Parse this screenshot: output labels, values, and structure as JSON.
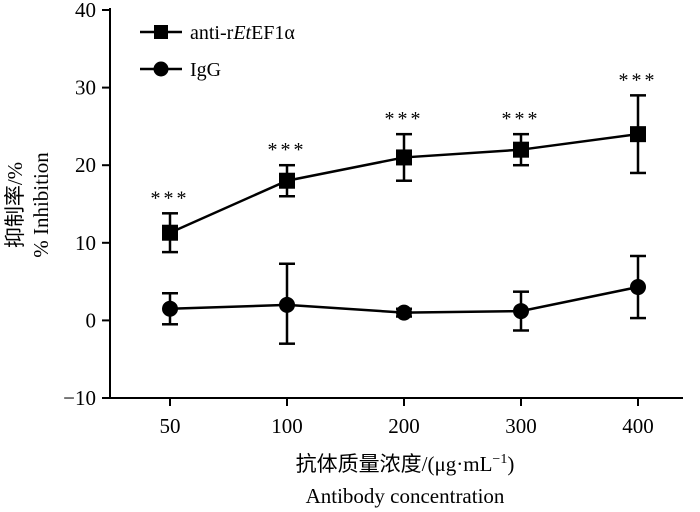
{
  "chart_data": {
    "type": "line",
    "x": [
      50,
      100,
      200,
      300,
      400
    ],
    "categories": [
      "50",
      "100",
      "200",
      "300",
      "400"
    ],
    "ylim": [
      -10,
      40
    ],
    "yticks": [
      -10,
      0,
      10,
      20,
      30,
      40
    ],
    "ylabel_cn": "抑制率/%",
    "ylabel_en": "% Inhibition",
    "xlabel_cn": "抗体质量浓度/(μg·mL",
    "xlabel_cn_sup": "−1",
    "xlabel_cn_close": ")",
    "xlabel_en": "Antibody concentration",
    "legend_position": "top-left",
    "series": [
      {
        "name_parts": [
          "anti-r",
          "Et",
          "EF1α"
        ],
        "marker": "square",
        "values": [
          11.3,
          18.0,
          21.0,
          22.0,
          24.0
        ],
        "err_low": [
          2.5,
          2.0,
          3.0,
          2.0,
          5.0
        ],
        "err_high": [
          2.5,
          2.0,
          3.0,
          2.0,
          5.0
        ],
        "significance": [
          "***",
          "***",
          "***",
          "***",
          "***"
        ]
      },
      {
        "name": "IgG",
        "marker": "circle",
        "values": [
          1.5,
          2.0,
          1.0,
          1.2,
          4.3
        ],
        "err_low": [
          2.0,
          5.0,
          0.5,
          2.5,
          4.0
        ],
        "err_high": [
          2.0,
          5.3,
          0.5,
          2.5,
          4.0
        ],
        "significance": [
          "",
          "",
          "",
          "",
          ""
        ]
      }
    ]
  }
}
